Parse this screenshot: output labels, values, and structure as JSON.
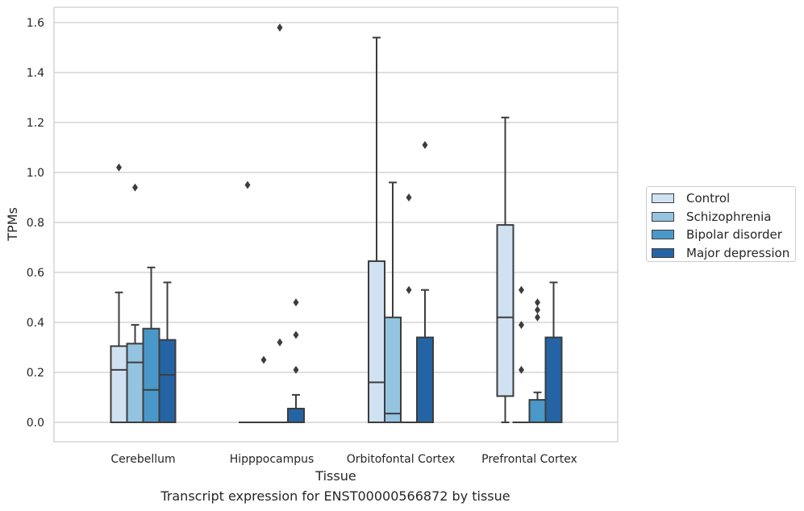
{
  "caption": "Transcript expression for ENST00000566872 by tissue",
  "chart_data": {
    "type": "box",
    "title": "",
    "xlabel": "Tissue",
    "ylabel": "TPMs",
    "categories": [
      "Cerebellum",
      "Hipppocampus",
      "Orbitofontal Cortex",
      "Prefrontal Cortex"
    ],
    "ylim": [
      -0.08,
      1.66
    ],
    "yticks": [
      "0.0",
      "0.2",
      "0.4",
      "0.6",
      "0.8",
      "1.0",
      "1.2",
      "1.4",
      "1.6"
    ],
    "grid": true,
    "legend_position": "right",
    "series": [
      {
        "name": "Control",
        "color": "#d0e1f2",
        "boxes": [
          {
            "q1": 0,
            "median": 0.21,
            "q3": 0.305,
            "whisker_low": 0,
            "whisker_high": 0.52,
            "outliers": [
              1.02
            ]
          },
          {
            "q1": 0,
            "median": 0,
            "q3": 0,
            "whisker_low": 0,
            "whisker_high": 0,
            "outliers": [
              0.95
            ]
          },
          {
            "q1": 0,
            "median": 0.16,
            "q3": 0.645,
            "whisker_low": 0,
            "whisker_high": 1.54,
            "outliers": []
          },
          {
            "q1": 0.105,
            "median": 0.42,
            "q3": 0.79,
            "whisker_low": 0,
            "whisker_high": 1.22,
            "outliers": []
          }
        ]
      },
      {
        "name": "Schizophrenia",
        "color": "#94c4df",
        "boxes": [
          {
            "q1": 0,
            "median": 0.24,
            "q3": 0.315,
            "whisker_low": 0,
            "whisker_high": 0.39,
            "outliers": [
              0.94
            ]
          },
          {
            "q1": 0,
            "median": 0,
            "q3": 0,
            "whisker_low": 0,
            "whisker_high": 0,
            "outliers": [
              0.25
            ]
          },
          {
            "q1": 0,
            "median": 0.035,
            "q3": 0.42,
            "whisker_low": 0,
            "whisker_high": 0.96,
            "outliers": []
          },
          {
            "q1": 0,
            "median": 0,
            "q3": 0,
            "whisker_low": 0,
            "whisker_high": 0,
            "outliers": [
              0.21,
              0.39,
              0.53
            ]
          }
        ]
      },
      {
        "name": "Bipolar disorder",
        "color": "#4a98c9",
        "boxes": [
          {
            "q1": 0,
            "median": 0.13,
            "q3": 0.375,
            "whisker_low": 0,
            "whisker_high": 0.62,
            "outliers": []
          },
          {
            "q1": 0,
            "median": 0,
            "q3": 0,
            "whisker_low": 0,
            "whisker_high": 0,
            "outliers": [
              0.32,
              1.58
            ]
          },
          {
            "q1": 0,
            "median": 0,
            "q3": 0,
            "whisker_low": 0,
            "whisker_high": 0,
            "outliers": [
              0.53,
              0.9
            ]
          },
          {
            "q1": 0,
            "median": 0,
            "q3": 0.09,
            "whisker_low": 0,
            "whisker_high": 0.12,
            "outliers": [
              0.42,
              0.45,
              0.48
            ]
          }
        ]
      },
      {
        "name": "Major depression",
        "color": "#2464a4",
        "boxes": [
          {
            "q1": 0,
            "median": 0.19,
            "q3": 0.33,
            "whisker_low": 0,
            "whisker_high": 0.56,
            "outliers": []
          },
          {
            "q1": 0,
            "median": 0,
            "q3": 0.055,
            "whisker_low": 0,
            "whisker_high": 0.11,
            "outliers": [
              0.21,
              0.35,
              0.48
            ]
          },
          {
            "q1": 0,
            "median": 0,
            "q3": 0.34,
            "whisker_low": 0,
            "whisker_high": 0.53,
            "outliers": [
              1.11
            ]
          },
          {
            "q1": 0,
            "median": 0,
            "q3": 0.34,
            "whisker_low": 0,
            "whisker_high": 0.56,
            "outliers": []
          }
        ]
      }
    ]
  }
}
